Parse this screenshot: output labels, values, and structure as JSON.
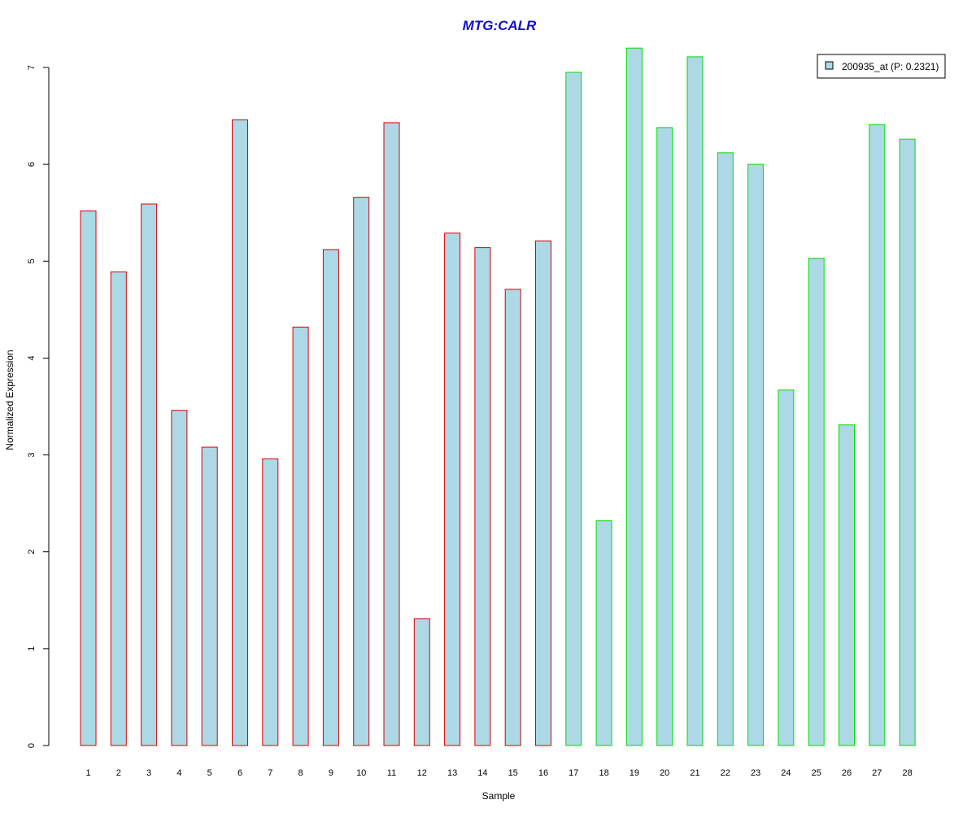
{
  "chart_data": {
    "type": "bar",
    "title": "MTG:CALR",
    "xlabel": "Sample",
    "ylabel": "Normalized Expression",
    "ylim": [
      0,
      7.2
    ],
    "yticks": [
      0,
      1,
      2,
      3,
      4,
      5,
      6,
      7
    ],
    "categories": [
      "1",
      "2",
      "3",
      "4",
      "5",
      "6",
      "7",
      "8",
      "9",
      "10",
      "11",
      "12",
      "13",
      "14",
      "15",
      "16",
      "17",
      "18",
      "19",
      "20",
      "21",
      "22",
      "23",
      "24",
      "25",
      "26",
      "27",
      "28"
    ],
    "values": [
      5.52,
      4.89,
      5.59,
      3.46,
      3.08,
      6.46,
      2.96,
      4.32,
      5.12,
      5.66,
      6.43,
      1.31,
      5.29,
      5.14,
      4.71,
      5.21,
      6.95,
      2.32,
      7.2,
      6.38,
      7.11,
      6.12,
      6.0,
      3.67,
      5.03,
      3.31,
      6.41,
      6.26
    ],
    "groups": [
      "a",
      "a",
      "a",
      "a",
      "a",
      "a",
      "a",
      "a",
      "a",
      "a",
      "a",
      "a",
      "a",
      "a",
      "a",
      "a",
      "b",
      "b",
      "b",
      "b",
      "b",
      "b",
      "b",
      "b",
      "b",
      "b",
      "b",
      "b"
    ],
    "legend": {
      "entries": [
        "200935_at (P: 0.2321)"
      ],
      "placement": "top-right"
    },
    "grid": false
  },
  "colors": {
    "title": "#1010c8",
    "bar_fill": "#add8e6",
    "group_a_border": "#dd0000",
    "group_b_border": "#00dd00",
    "axis": "#000000"
  }
}
